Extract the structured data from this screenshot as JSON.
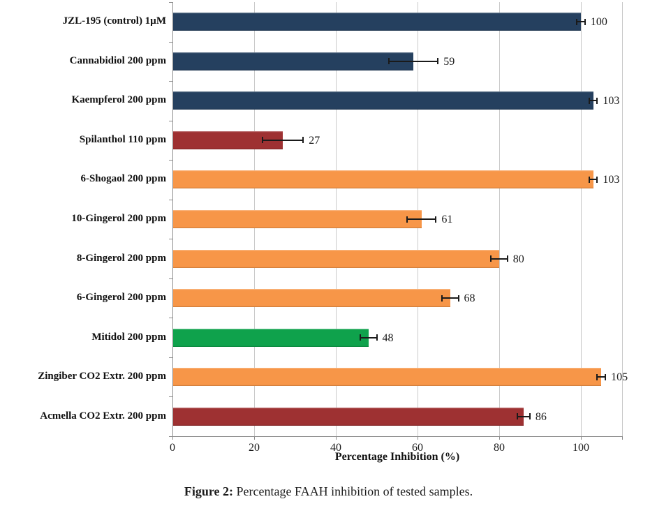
{
  "figure": {
    "caption_prefix": "Figure 2:",
    "caption_text": " Percentage FAAH inhibition of tested samples."
  },
  "chart_data": {
    "type": "bar",
    "orientation": "horizontal",
    "title": "",
    "xlabel": "Percentage Inhibition (%)",
    "ylabel": "",
    "xlim": [
      0,
      110
    ],
    "xticks": [
      0,
      20,
      40,
      60,
      80,
      100
    ],
    "grid": true,
    "legend": false,
    "categories": [
      "JZL-195 (control) 1µM",
      "Cannabidiol 200 ppm",
      "Kaempferol 200 ppm",
      "Spilanthol 110 ppm",
      "6-Shogaol 200 ppm",
      "10-Gingerol 200 ppm",
      "8-Gingerol 200 ppm",
      "6-Gingerol 200 ppm",
      "Mitidol 200 ppm",
      "Zingiber CO2 Extr. 200 ppm",
      "Acmella CO2 Extr. 200 ppm"
    ],
    "values": [
      100,
      59,
      103,
      27,
      103,
      61,
      80,
      68,
      48,
      105,
      86
    ],
    "errors": [
      1,
      6,
      1,
      5,
      1,
      3.5,
      2,
      2,
      2,
      1,
      1.5
    ],
    "bar_colors": [
      "#25405f",
      "#25405f",
      "#25405f",
      "#9e3132",
      "#f79648",
      "#f79648",
      "#f79648",
      "#f79648",
      "#0fa24c",
      "#f79648",
      "#9e3132"
    ],
    "colors": {
      "dark_blue": "#25405f",
      "orange": "#f79648",
      "dark_red": "#9e3132",
      "green": "#0fa24c",
      "gridline": "#c9c9c9",
      "axis": "#8c8c8c",
      "error_bar": "#1a1a1a"
    }
  }
}
